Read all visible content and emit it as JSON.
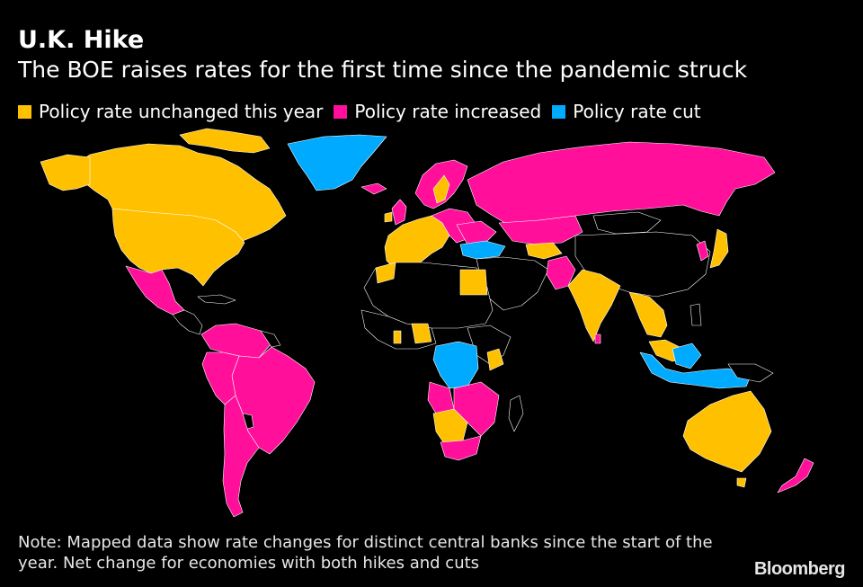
{
  "header": {
    "title": "U.K. Hike",
    "subtitle": "The BOE raises rates for the first time since the pandemic struck"
  },
  "legend": {
    "items": [
      {
        "label": "Policy rate unchanged this year",
        "color": "#ffc000"
      },
      {
        "label": "Policy rate increased",
        "color": "#ff0f9a"
      },
      {
        "label": "Policy rate cut",
        "color": "#00aaff"
      }
    ]
  },
  "map": {
    "background_color": "#000000",
    "no_data_color": "#000000",
    "border_color": "#ffffff"
  },
  "footer": {
    "note": "Note: Mapped data show rate changes for distinct central banks since the start of the year. Net change for economies with both hikes and cuts",
    "logo": "Bloomberg"
  }
}
